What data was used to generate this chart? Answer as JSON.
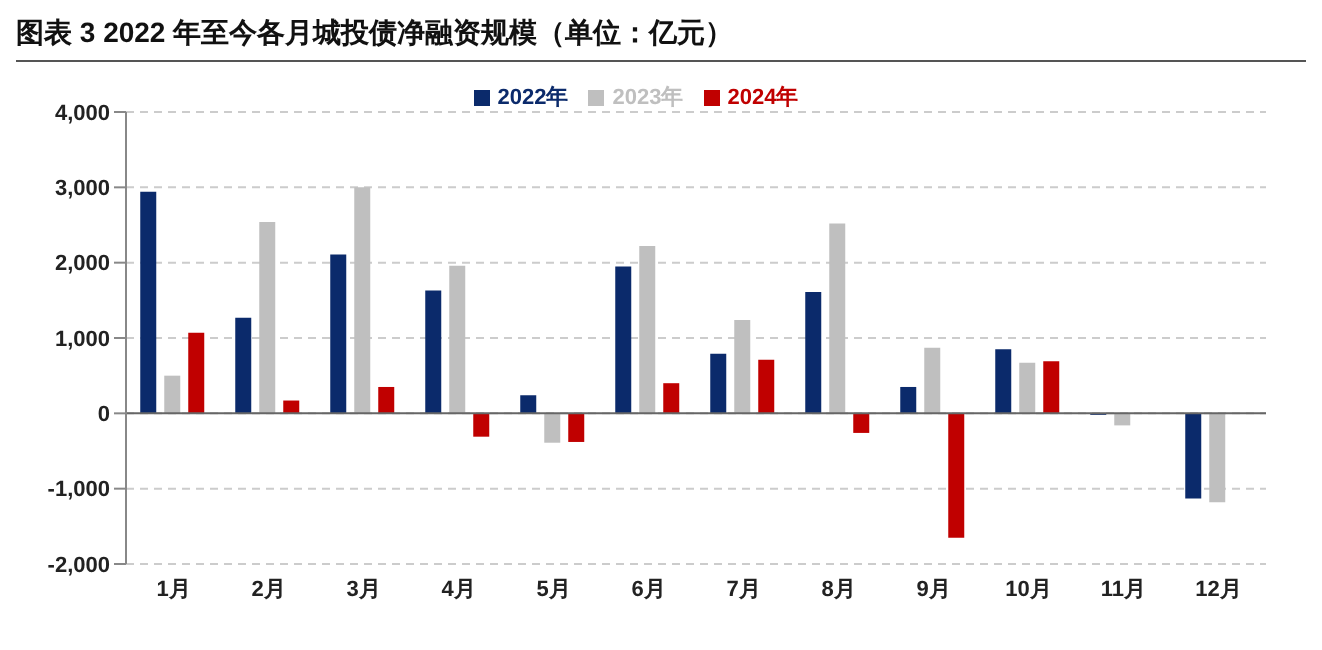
{
  "chart_data": {
    "type": "bar",
    "title": "图表 3 2022 年至今各月城投债净融资规模（单位：亿元）",
    "categories": [
      "1月",
      "2月",
      "3月",
      "4月",
      "5月",
      "6月",
      "7月",
      "8月",
      "9月",
      "10月",
      "11月",
      "12月"
    ],
    "series": [
      {
        "name": "2022年",
        "color": "#0b2a6b",
        "values": [
          2940,
          1270,
          2110,
          1630,
          240,
          1950,
          790,
          1610,
          350,
          850,
          -20,
          -1130
        ]
      },
      {
        "name": "2023年",
        "color": "#bfbfbf",
        "values": [
          500,
          2540,
          3000,
          1960,
          -390,
          2220,
          1240,
          2520,
          870,
          670,
          -160,
          -1180
        ]
      },
      {
        "name": "2024年",
        "color": "#c00000",
        "values": [
          1070,
          170,
          350,
          -310,
          -380,
          400,
          710,
          -260,
          -1650,
          690,
          null,
          null
        ]
      }
    ],
    "ylim": [
      -2000,
      4000
    ],
    "yticks": [
      {
        "value": -2000,
        "label": "-2,000"
      },
      {
        "value": -1000,
        "label": "-1,000"
      },
      0,
      {
        "value": 1000,
        "label": "1,000"
      },
      {
        "value": 2000,
        "label": "2,000"
      },
      {
        "value": 3000,
        "label": "3,000"
      },
      {
        "value": 4000,
        "label": "4,000"
      }
    ],
    "grid": "y",
    "legend": "top"
  }
}
